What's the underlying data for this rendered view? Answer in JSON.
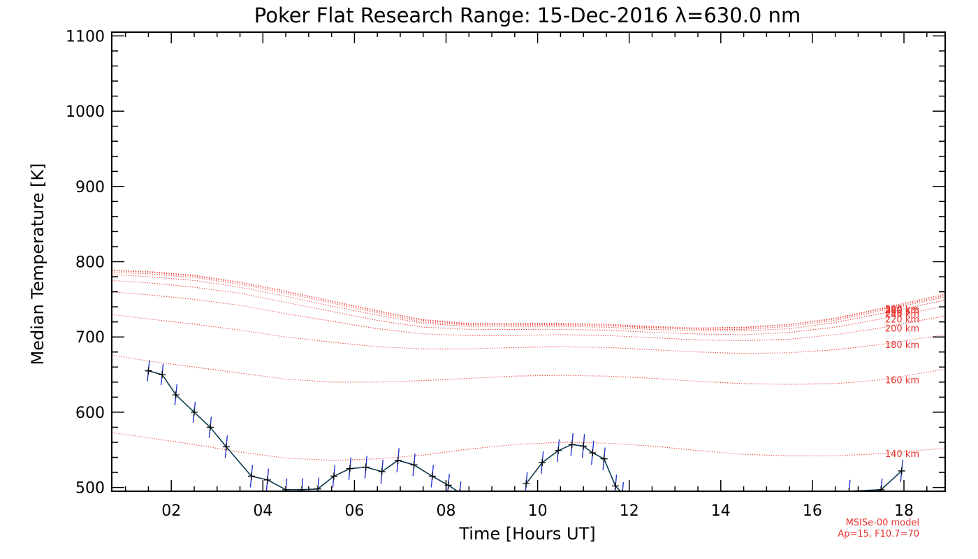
{
  "chart_data": {
    "type": "line",
    "title": "Poker Flat Research Range: 15-Dec-2016 λ=630.0 nm",
    "xlabel": "Time [Hours UT]",
    "ylabel": "Median Temperature [K]",
    "xlim": [
      0.7,
      18.9
    ],
    "ylim": [
      495,
      1105
    ],
    "xticks": [
      2,
      4,
      6,
      8,
      10,
      12,
      14,
      16,
      18
    ],
    "xtick_labels": [
      "02",
      "04",
      "06",
      "08",
      "10",
      "12",
      "14",
      "16",
      "18"
    ],
    "yticks": [
      500,
      600,
      700,
      800,
      900,
      1000,
      1100
    ],
    "ytick_labels": [
      "500",
      "600",
      "700",
      "800",
      "900",
      "1000",
      "1100"
    ],
    "grid": false,
    "colors": {
      "data_line": "#0d3b4f",
      "error_bars": "#2233cc",
      "model": "#e8342f",
      "axes": "#000000"
    },
    "series": [
      {
        "name": "",
        "style": "line-with-errorbars",
        "x": [
          1.5,
          1.8,
          2.1,
          2.5,
          2.85,
          3.2,
          3.75,
          4.1,
          4.5,
          4.85,
          5.2,
          5.55,
          5.9,
          6.25,
          6.6,
          6.95,
          7.3,
          7.7,
          8.05,
          8.3,
          9.75,
          10.1,
          10.45,
          10.75,
          11.0,
          11.2,
          11.45,
          11.7,
          11.85,
          16.8,
          17.5,
          17.95
        ],
        "y": [
          655,
          650,
          623,
          600,
          580,
          554,
          515,
          510,
          497,
          497,
          498,
          515,
          525,
          527,
          521,
          536,
          530,
          515,
          503,
          493,
          505,
          533,
          549,
          557,
          555,
          546,
          538,
          502,
          492,
          495,
          497,
          522
        ],
        "yerr": [
          14,
          14,
          14,
          14,
          14,
          15,
          15,
          15,
          15,
          15,
          15,
          15,
          15,
          15,
          16,
          16,
          15,
          15,
          15,
          15,
          15,
          15,
          15,
          15,
          16,
          16,
          15,
          15,
          15,
          15,
          15,
          15
        ]
      }
    ],
    "model": {
      "label_line1": "MSISe-00 model",
      "label_line2": "Ap=15, F10.7=70",
      "x": [
        0.7,
        1.5,
        2.5,
        3.5,
        4.5,
        5.5,
        6.5,
        7.5,
        8.5,
        9.5,
        10.5,
        11.5,
        12.5,
        13.5,
        14.5,
        15.5,
        16.5,
        17.5,
        18.9
      ],
      "curves": [
        {
          "label": "140 km",
          "values": [
            573,
            566,
            557,
            547,
            539,
            536,
            538,
            543,
            551,
            557,
            560,
            559,
            555,
            549,
            544,
            542,
            542,
            545,
            552
          ]
        },
        {
          "label": "160 km",
          "values": [
            676,
            668,
            660,
            652,
            644,
            640,
            640,
            642,
            645,
            648,
            649,
            648,
            645,
            641,
            638,
            637,
            638,
            643,
            657
          ]
        },
        {
          "label": "180 km",
          "values": [
            730,
            724,
            717,
            709,
            700,
            693,
            687,
            684,
            684,
            686,
            687,
            686,
            683,
            680,
            678,
            679,
            683,
            690,
            703
          ]
        },
        {
          "label": "200 km",
          "values": [
            760,
            756,
            750,
            742,
            731,
            721,
            711,
            704,
            702,
            702,
            703,
            702,
            699,
            696,
            695,
            697,
            703,
            712,
            728
          ]
        },
        {
          "label": "220 km",
          "values": [
            775,
            772,
            766,
            758,
            746,
            734,
            722,
            713,
            710,
            710,
            710,
            709,
            706,
            704,
            703,
            706,
            713,
            724,
            741
          ]
        },
        {
          "label": "240 km",
          "values": [
            783,
            780,
            775,
            766,
            754,
            741,
            729,
            718,
            714,
            714,
            714,
            713,
            710,
            708,
            708,
            711,
            719,
            731,
            749
          ]
        },
        {
          "label": "260 km",
          "values": [
            786,
            784,
            779,
            770,
            758,
            745,
            732,
            720,
            716,
            716,
            716,
            715,
            712,
            710,
            710,
            714,
            722,
            735,
            753
          ]
        },
        {
          "label": "280 km",
          "values": [
            788,
            786,
            781,
            772,
            760,
            747,
            734,
            722,
            717,
            717,
            717,
            716,
            713,
            711,
            712,
            716,
            724,
            737,
            755
          ]
        },
        {
          "label": "300 km",
          "values": [
            789,
            787,
            782,
            773,
            761,
            748,
            735,
            723,
            718,
            718,
            718,
            717,
            714,
            712,
            713,
            717,
            725,
            738,
            757
          ]
        }
      ]
    }
  }
}
